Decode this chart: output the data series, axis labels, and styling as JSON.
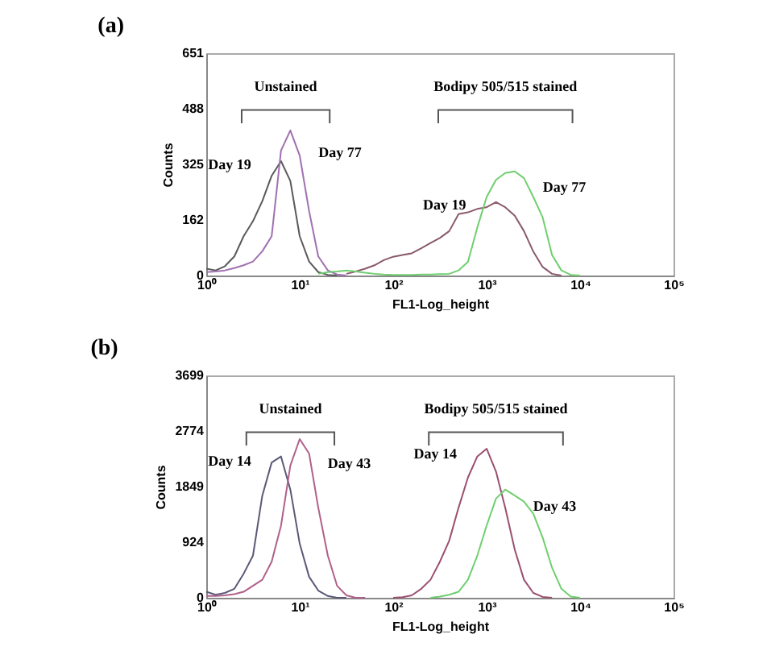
{
  "chart_data": [
    {
      "type": "line",
      "title": "(a)",
      "xlabel": "FL1-Log_height",
      "ylabel": "Counts",
      "log": "x",
      "grid": false,
      "legend": false,
      "marker": "none",
      "line_style": "solid",
      "x": [
        1,
        1.26,
        1.58,
        2,
        2.51,
        3.16,
        3.98,
        5.01,
        6.31,
        7.94,
        10,
        12.6,
        15.8,
        20,
        25.1,
        31.6,
        39.8,
        50.1,
        63.1,
        79.4,
        100,
        126,
        158,
        200,
        251,
        316,
        398,
        501,
        631,
        794,
        1000,
        1260,
        1580,
        2000,
        2510,
        3160,
        3980,
        5010,
        6310,
        7940,
        10000
      ],
      "xlim": [
        1,
        100000
      ],
      "xticks": [
        {
          "value": 1,
          "label": "10⁰"
        },
        {
          "value": 10,
          "label": "10¹"
        },
        {
          "value": 100,
          "label": "10²"
        },
        {
          "value": 1000,
          "label": "10³"
        },
        {
          "value": 10000,
          "label": "10⁴"
        },
        {
          "value": 100000,
          "label": "10⁵"
        }
      ],
      "ylim": [
        0,
        651
      ],
      "yticks": [
        0,
        162,
        325,
        488,
        651
      ],
      "series": [
        {
          "name": "Day 19",
          "color": "#5a5a5a",
          "values": [
            20,
            15,
            27,
            56,
            115,
            159,
            218,
            292,
            335,
            277,
            115,
            41,
            10,
            2,
            0,
            null,
            null,
            null,
            null,
            null,
            null,
            null,
            null,
            null,
            null,
            null,
            null,
            null,
            null,
            null,
            null,
            null,
            null,
            null,
            null,
            null,
            null,
            null,
            null,
            null,
            null
          ]
        },
        {
          "name": "Day 77",
          "color": "#a070b0",
          "values": [
            10,
            12,
            15,
            22,
            30,
            41,
            71,
            115,
            366,
            425,
            351,
            189,
            56,
            15,
            3,
            0,
            null,
            null,
            null,
            null,
            null,
            null,
            null,
            null,
            null,
            null,
            null,
            null,
            null,
            null,
            null,
            null,
            null,
            null,
            null,
            null,
            null,
            null,
            null,
            null,
            null
          ]
        },
        {
          "name": "Day 19",
          "color": "#8a5a6a",
          "values": [
            null,
            null,
            null,
            null,
            null,
            null,
            null,
            null,
            null,
            null,
            null,
            null,
            null,
            null,
            null,
            5,
            12,
            20,
            30,
            45,
            55,
            60,
            65,
            80,
            95,
            110,
            130,
            180,
            185,
            195,
            200,
            215,
            200,
            175,
            130,
            70,
            25,
            5,
            0,
            null,
            null
          ]
        },
        {
          "name": "Day 77",
          "color": "#6fcf6f",
          "values": [
            null,
            null,
            null,
            null,
            null,
            null,
            null,
            null,
            null,
            null,
            null,
            null,
            5,
            10,
            12,
            15,
            12,
            8,
            5,
            3,
            2,
            2,
            2,
            3,
            3,
            4,
            5,
            15,
            40,
            140,
            230,
            280,
            300,
            305,
            285,
            230,
            170,
            60,
            15,
            2,
            0
          ]
        }
      ],
      "annotations": [
        "Unstained",
        "Bodipy 505/515 stained"
      ]
    },
    {
      "type": "line",
      "title": "(b)",
      "xlabel": "FL1-Log_height",
      "ylabel": "Counts",
      "log": "x",
      "grid": false,
      "legend": false,
      "marker": "none",
      "line_style": "solid",
      "x": [
        1,
        1.26,
        1.58,
        2,
        2.51,
        3.16,
        3.98,
        5.01,
        6.31,
        7.94,
        10,
        12.6,
        15.8,
        20,
        25.1,
        31.6,
        39.8,
        50.1,
        63.1,
        79.4,
        100,
        126,
        158,
        200,
        251,
        316,
        398,
        501,
        631,
        794,
        1000,
        1260,
        1580,
        2000,
        2510,
        3160,
        3980,
        5010,
        6310,
        7940,
        10000
      ],
      "xlim": [
        1,
        100000
      ],
      "xticks": [
        {
          "value": 1,
          "label": "10⁰"
        },
        {
          "value": 10,
          "label": "10¹"
        },
        {
          "value": 100,
          "label": "10²"
        },
        {
          "value": 1000,
          "label": "10³"
        },
        {
          "value": 10000,
          "label": "10⁴"
        },
        {
          "value": 100000,
          "label": "10⁵"
        }
      ],
      "ylim": [
        0,
        3699
      ],
      "yticks": [
        0,
        924,
        1849,
        2774,
        3699
      ],
      "series": [
        {
          "name": "Day 14",
          "color": "#5a5a78",
          "values": [
            100,
            50,
            80,
            150,
            400,
            700,
            1700,
            2250,
            2350,
            1800,
            900,
            350,
            120,
            30,
            0,
            0,
            null,
            null,
            null,
            null,
            null,
            null,
            null,
            null,
            null,
            null,
            null,
            null,
            null,
            null,
            null,
            null,
            null,
            null,
            null,
            null,
            null,
            null,
            null,
            null,
            null
          ]
        },
        {
          "name": "Day 43",
          "color": "#b0608a",
          "values": [
            30,
            30,
            40,
            60,
            100,
            200,
            300,
            600,
            1200,
            2200,
            2640,
            2400,
            1500,
            700,
            200,
            40,
            0,
            0,
            null,
            null,
            null,
            null,
            null,
            null,
            null,
            null,
            null,
            null,
            null,
            null,
            null,
            null,
            null,
            null,
            null,
            null,
            null,
            null,
            null,
            null,
            null
          ]
        },
        {
          "name": "Day 14",
          "color": "#9a5070",
          "values": [
            null,
            null,
            null,
            null,
            null,
            null,
            null,
            null,
            null,
            null,
            null,
            null,
            null,
            null,
            null,
            null,
            null,
            null,
            null,
            null,
            0,
            10,
            40,
            150,
            300,
            600,
            950,
            1500,
            2000,
            2350,
            2480,
            2100,
            1500,
            800,
            300,
            80,
            15,
            0,
            null,
            null,
            null
          ]
        },
        {
          "name": "Day 43",
          "color": "#6fcf6f",
          "values": [
            null,
            null,
            null,
            null,
            null,
            null,
            null,
            null,
            null,
            null,
            null,
            null,
            null,
            null,
            null,
            null,
            null,
            null,
            null,
            null,
            null,
            null,
            null,
            null,
            0,
            20,
            50,
            100,
            300,
            700,
            1200,
            1650,
            1800,
            1700,
            1600,
            1400,
            1000,
            500,
            150,
            20,
            0
          ]
        }
      ],
      "annotations": [
        "Unstained",
        "Bodipy 505/515 stained"
      ]
    }
  ]
}
